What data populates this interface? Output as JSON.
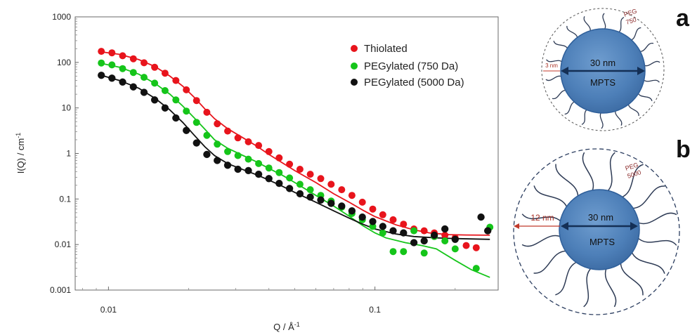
{
  "chart_data": {
    "type": "scatter",
    "xscale": "log",
    "yscale": "log",
    "xlim": [
      0.0075,
      0.29
    ],
    "ylim": [
      0.001,
      1000
    ],
    "xlabel_main": "Q / Å",
    "xlabel_sup": "-1",
    "ylabel_main": "I(Q) / cm",
    "ylabel_sup": "-1",
    "xticks": [
      {
        "value": 0.01,
        "label": "0.01"
      },
      {
        "value": 0.1,
        "label": "0.1"
      }
    ],
    "yticks": [
      {
        "value": 0.001,
        "label": "0.001"
      },
      {
        "value": 0.01,
        "label": "0.01"
      },
      {
        "value": 0.1,
        "label": "0.1"
      },
      {
        "value": 1,
        "label": "1"
      },
      {
        "value": 10,
        "label": "10"
      },
      {
        "value": 100,
        "label": "100"
      },
      {
        "value": 1000,
        "label": "1000"
      }
    ],
    "legend_position": "top-right",
    "grid": false,
    "series": [
      {
        "name": "Thiolated",
        "color": "#e8141c",
        "points": [
          [
            0.0094,
            175
          ],
          [
            0.0103,
            162
          ],
          [
            0.0113,
            140
          ],
          [
            0.0124,
            120
          ],
          [
            0.0136,
            98
          ],
          [
            0.0149,
            78
          ],
          [
            0.0163,
            58
          ],
          [
            0.0179,
            40
          ],
          [
            0.0196,
            25
          ],
          [
            0.0214,
            14.5
          ],
          [
            0.0234,
            8
          ],
          [
            0.0256,
            4.5
          ],
          [
            0.028,
            3.1
          ],
          [
            0.0306,
            2.2
          ],
          [
            0.0335,
            1.8
          ],
          [
            0.0366,
            1.5
          ],
          [
            0.04,
            1.1
          ],
          [
            0.0437,
            0.8
          ],
          [
            0.0478,
            0.58
          ],
          [
            0.0523,
            0.45
          ],
          [
            0.0572,
            0.35
          ],
          [
            0.0626,
            0.28
          ],
          [
            0.0685,
            0.21
          ],
          [
            0.075,
            0.16
          ],
          [
            0.082,
            0.12
          ],
          [
            0.0897,
            0.085
          ],
          [
            0.0981,
            0.06
          ],
          [
            0.107,
            0.045
          ],
          [
            0.117,
            0.035
          ],
          [
            0.128,
            0.028
          ],
          [
            0.14,
            0.022
          ],
          [
            0.153,
            0.02
          ],
          [
            0.167,
            0.018
          ],
          [
            0.183,
            0.016
          ],
          [
            0.2,
            0.014
          ],
          [
            0.22,
            0.0095
          ],
          [
            0.24,
            0.0085
          ],
          [
            0.265,
            0.02
          ]
        ],
        "fit": [
          [
            0.0094,
            170
          ],
          [
            0.011,
            150
          ],
          [
            0.013,
            115
          ],
          [
            0.015,
            80
          ],
          [
            0.017,
            50
          ],
          [
            0.019,
            30
          ],
          [
            0.021,
            17
          ],
          [
            0.023,
            9.5
          ],
          [
            0.025,
            5.8
          ],
          [
            0.028,
            3.5
          ],
          [
            0.032,
            2.2
          ],
          [
            0.036,
            1.45
          ],
          [
            0.04,
            0.95
          ],
          [
            0.045,
            0.62
          ],
          [
            0.05,
            0.42
          ],
          [
            0.06,
            0.23
          ],
          [
            0.07,
            0.13
          ],
          [
            0.08,
            0.085
          ],
          [
            0.09,
            0.057
          ],
          [
            0.1,
            0.041
          ],
          [
            0.12,
            0.027
          ],
          [
            0.14,
            0.021
          ],
          [
            0.16,
            0.018
          ],
          [
            0.19,
            0.0165
          ],
          [
            0.22,
            0.0162
          ],
          [
            0.27,
            0.016
          ]
        ]
      },
      {
        "name": "PEGylated (750 Da)",
        "color": "#15c51a",
        "points": [
          [
            0.0094,
            97
          ],
          [
            0.0103,
            88
          ],
          [
            0.0113,
            73
          ],
          [
            0.0124,
            60
          ],
          [
            0.0136,
            47
          ],
          [
            0.0149,
            35
          ],
          [
            0.0163,
            24
          ],
          [
            0.0179,
            15
          ],
          [
            0.0196,
            8.5
          ],
          [
            0.0214,
            4.8
          ],
          [
            0.0234,
            2.5
          ],
          [
            0.0256,
            1.6
          ],
          [
            0.028,
            1.1
          ],
          [
            0.0306,
            0.9
          ],
          [
            0.0335,
            0.75
          ],
          [
            0.0366,
            0.6
          ],
          [
            0.04,
            0.48
          ],
          [
            0.0437,
            0.38
          ],
          [
            0.0478,
            0.29
          ],
          [
            0.0523,
            0.21
          ],
          [
            0.0572,
            0.16
          ],
          [
            0.0626,
            0.12
          ],
          [
            0.0685,
            0.09
          ],
          [
            0.075,
            0.066
          ],
          [
            0.082,
            0.048
          ],
          [
            0.0897,
            0.035
          ],
          [
            0.0981,
            0.025
          ],
          [
            0.107,
            0.018
          ],
          [
            0.117,
            0.007
          ],
          [
            0.128,
            0.007
          ],
          [
            0.14,
            0.02
          ],
          [
            0.153,
            0.0065
          ],
          [
            0.167,
            0.015
          ],
          [
            0.183,
            0.012
          ],
          [
            0.2,
            0.008
          ],
          [
            0.24,
            0.003
          ],
          [
            0.27,
            0.024
          ]
        ],
        "fit": [
          [
            0.0094,
            95
          ],
          [
            0.011,
            78
          ],
          [
            0.013,
            55
          ],
          [
            0.015,
            34
          ],
          [
            0.017,
            20
          ],
          [
            0.019,
            11
          ],
          [
            0.021,
            6
          ],
          [
            0.023,
            3.4
          ],
          [
            0.025,
            2
          ],
          [
            0.028,
            1.3
          ],
          [
            0.032,
            0.9
          ],
          [
            0.036,
            0.65
          ],
          [
            0.04,
            0.47
          ],
          [
            0.045,
            0.33
          ],
          [
            0.05,
            0.23
          ],
          [
            0.06,
            0.12
          ],
          [
            0.07,
            0.07
          ],
          [
            0.08,
            0.042
          ],
          [
            0.09,
            0.026
          ],
          [
            0.1,
            0.018
          ],
          [
            0.11,
            0.014
          ],
          [
            0.13,
            0.011
          ],
          [
            0.15,
            0.0095
          ],
          [
            0.17,
            0.008
          ],
          [
            0.2,
            0.0045
          ],
          [
            0.23,
            0.0028
          ],
          [
            0.27,
            0.0019
          ]
        ]
      },
      {
        "name": "PEGylated (5000 Da)",
        "color": "#111111",
        "points": [
          [
            0.0094,
            52
          ],
          [
            0.0103,
            45
          ],
          [
            0.0113,
            37
          ],
          [
            0.0124,
            29
          ],
          [
            0.0136,
            22
          ],
          [
            0.0149,
            15
          ],
          [
            0.0163,
            10
          ],
          [
            0.0179,
            6
          ],
          [
            0.0196,
            3.2
          ],
          [
            0.0214,
            1.7
          ],
          [
            0.0234,
            0.95
          ],
          [
            0.0256,
            0.7
          ],
          [
            0.028,
            0.55
          ],
          [
            0.0306,
            0.45
          ],
          [
            0.0335,
            0.42
          ],
          [
            0.0366,
            0.35
          ],
          [
            0.04,
            0.28
          ],
          [
            0.0437,
            0.22
          ],
          [
            0.0478,
            0.17
          ],
          [
            0.0523,
            0.13
          ],
          [
            0.0572,
            0.11
          ],
          [
            0.0626,
            0.095
          ],
          [
            0.0685,
            0.08
          ],
          [
            0.075,
            0.07
          ],
          [
            0.082,
            0.055
          ],
          [
            0.0897,
            0.04
          ],
          [
            0.0981,
            0.032
          ],
          [
            0.107,
            0.025
          ],
          [
            0.117,
            0.02
          ],
          [
            0.128,
            0.018
          ],
          [
            0.14,
            0.011
          ],
          [
            0.153,
            0.012
          ],
          [
            0.167,
            0.016
          ],
          [
            0.183,
            0.022
          ],
          [
            0.2,
            0.013
          ],
          [
            0.25,
            0.04
          ],
          [
            0.265,
            0.02
          ]
        ],
        "fit": [
          [
            0.0094,
            52
          ],
          [
            0.011,
            40
          ],
          [
            0.013,
            27
          ],
          [
            0.015,
            16
          ],
          [
            0.017,
            9
          ],
          [
            0.019,
            4.8
          ],
          [
            0.021,
            2.5
          ],
          [
            0.023,
            1.4
          ],
          [
            0.025,
            0.9
          ],
          [
            0.028,
            0.6
          ],
          [
            0.032,
            0.44
          ],
          [
            0.036,
            0.34
          ],
          [
            0.04,
            0.26
          ],
          [
            0.045,
            0.19
          ],
          [
            0.05,
            0.14
          ],
          [
            0.06,
            0.085
          ],
          [
            0.07,
            0.055
          ],
          [
            0.08,
            0.038
          ],
          [
            0.09,
            0.028
          ],
          [
            0.1,
            0.022
          ],
          [
            0.12,
            0.017
          ],
          [
            0.14,
            0.015
          ],
          [
            0.17,
            0.014
          ],
          [
            0.2,
            0.0135
          ],
          [
            0.27,
            0.013
          ]
        ]
      }
    ]
  },
  "schematics": [
    {
      "letter": "a",
      "core_label": "30 nm",
      "core_name": "MPTS",
      "shell_label": "3 nm",
      "peg_label_line1": "PEG",
      "peg_label_line2": "750"
    },
    {
      "letter": "b",
      "core_label": "30 nm",
      "core_name": "MPTS",
      "shell_label": "12 nm",
      "peg_label_line1": "PEG",
      "peg_label_line2": "5000"
    }
  ]
}
